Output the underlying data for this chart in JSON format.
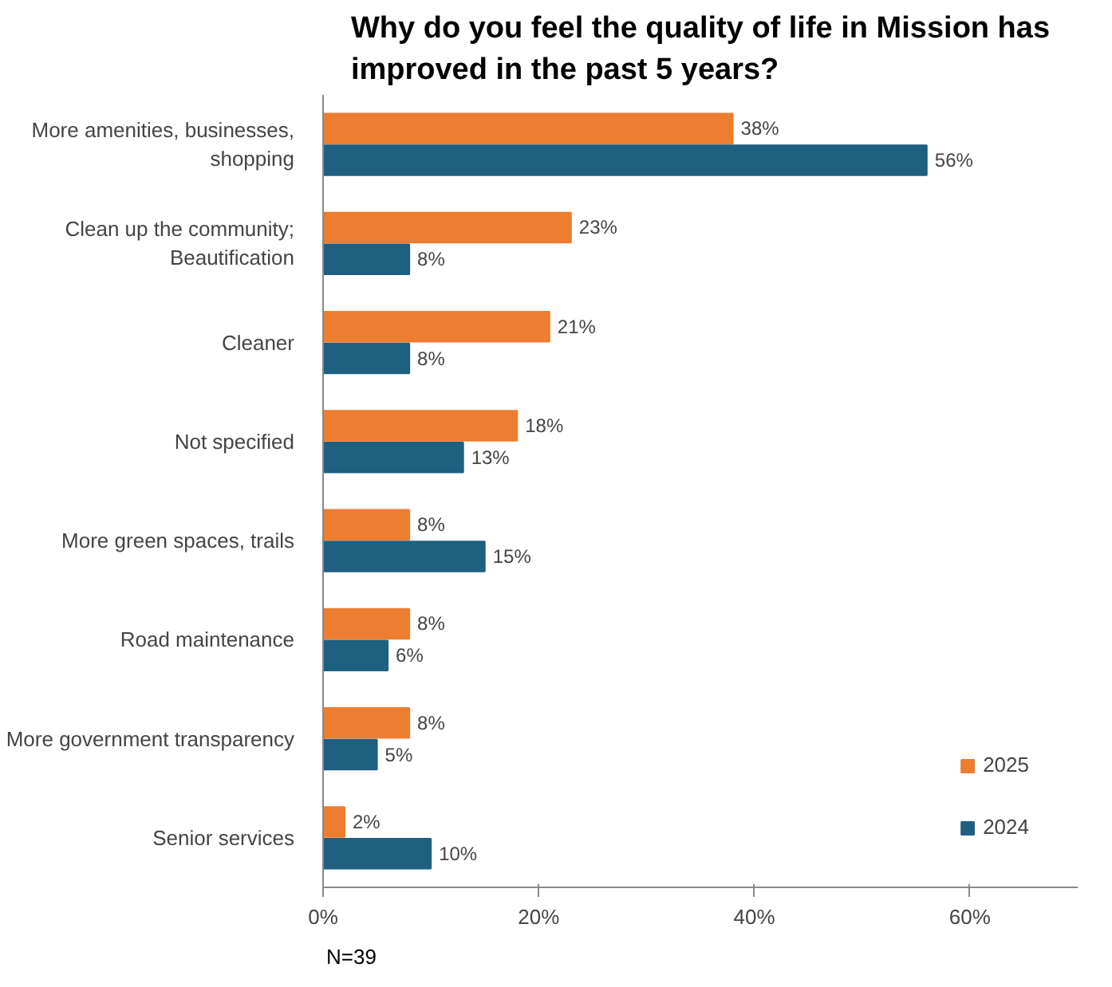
{
  "chart_data": {
    "type": "bar",
    "orientation": "horizontal",
    "title": "Why do you feel the quality of life in Mission has improved in the past 5 years?",
    "categories": [
      "More amenities, businesses, shopping",
      "Clean up the community; Beautification",
      "Cleaner",
      "Not specified",
      "More green spaces, trails",
      "Road maintenance",
      "More government transparency",
      "Senior services"
    ],
    "series": [
      {
        "name": "2025",
        "color": "#ed7d31",
        "values": [
          38,
          23,
          21,
          18,
          8,
          8,
          8,
          2
        ],
        "value_labels": [
          "38%",
          "23%",
          "21%",
          "18%",
          "8%",
          "8%",
          "8%",
          "2%"
        ]
      },
      {
        "name": "2024",
        "color": "#1f5f80",
        "values": [
          56,
          8,
          8,
          13,
          15,
          6,
          5,
          10
        ],
        "value_labels": [
          "56%",
          "8%",
          "8%",
          "13%",
          "15%",
          "6%",
          "5%",
          "10%"
        ]
      }
    ],
    "xlim": [
      0,
      70
    ],
    "xticks": [
      {
        "value": 0,
        "label": "0%"
      },
      {
        "value": 20,
        "label": "20%"
      },
      {
        "value": 40,
        "label": "40%"
      },
      {
        "value": 60,
        "label": "60%"
      }
    ],
    "grid": false,
    "legend": "bottom right",
    "annotations": [
      "N=39"
    ]
  }
}
